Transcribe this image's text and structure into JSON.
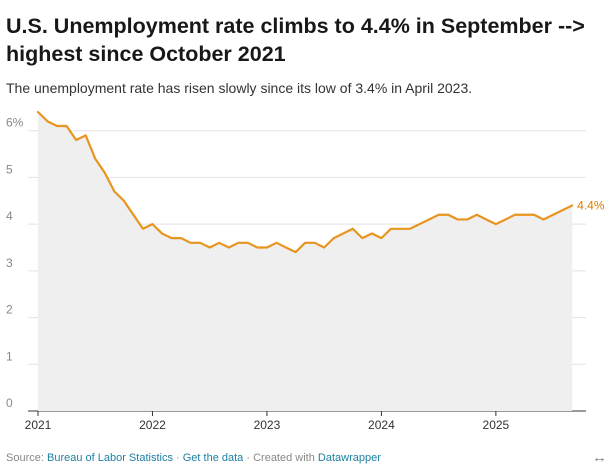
{
  "title": "U.S. Unemployment rate climbs to 4.4% in September --> highest since October 2021",
  "subtitle": "The unemployment rate has risen slowly since its low of 3.4% in April 2023.",
  "footer": {
    "source_prefix": "Source:",
    "source_link": "Bureau of Labor Statistics",
    "separator1": "·",
    "get_data": "Get the data",
    "separator2": "·",
    "created_with": "Created with",
    "datawrapper": "Datawrapper"
  },
  "expand_icon": "↔",
  "colors": {
    "line": "#e8951f",
    "area": "#efefef",
    "label": "#d97c00",
    "grid": "#e2e2e2",
    "link": "#1d81a2"
  },
  "chart_data": {
    "type": "line",
    "title": "U.S. Unemployment rate climbs to 4.4% in September --> highest since October 2021",
    "subtitle": "The unemployment rate has risen slowly since its low of 3.4% in April 2023.",
    "xlabel": "",
    "ylabel": "",
    "ylim": [
      0,
      6.4
    ],
    "yticks": [
      0,
      1,
      2,
      3,
      4,
      5,
      6
    ],
    "ytick_labels": [
      "0",
      "1",
      "2",
      "3",
      "4",
      "5",
      "6%"
    ],
    "xticks": [
      "2021",
      "2022",
      "2023",
      "2024",
      "2025"
    ],
    "grid": true,
    "area_fill": true,
    "end_label": "4.4%",
    "x": [
      "2021-01",
      "2021-02",
      "2021-03",
      "2021-04",
      "2021-05",
      "2021-06",
      "2021-07",
      "2021-08",
      "2021-09",
      "2021-10",
      "2021-11",
      "2021-12",
      "2022-01",
      "2022-02",
      "2022-03",
      "2022-04",
      "2022-05",
      "2022-06",
      "2022-07",
      "2022-08",
      "2022-09",
      "2022-10",
      "2022-11",
      "2022-12",
      "2023-01",
      "2023-02",
      "2023-03",
      "2023-04",
      "2023-05",
      "2023-06",
      "2023-07",
      "2023-08",
      "2023-09",
      "2023-10",
      "2023-11",
      "2023-12",
      "2024-01",
      "2024-02",
      "2024-03",
      "2024-04",
      "2024-05",
      "2024-06",
      "2024-07",
      "2024-08",
      "2024-09",
      "2024-10",
      "2024-11",
      "2024-12",
      "2025-01",
      "2025-02",
      "2025-03",
      "2025-04",
      "2025-05",
      "2025-06",
      "2025-07",
      "2025-08",
      "2025-09"
    ],
    "values": [
      6.4,
      6.2,
      6.1,
      6.1,
      5.8,
      5.9,
      5.4,
      5.1,
      4.7,
      4.5,
      4.2,
      3.9,
      4.0,
      3.8,
      3.7,
      3.7,
      3.6,
      3.6,
      3.5,
      3.6,
      3.5,
      3.6,
      3.6,
      3.5,
      3.5,
      3.6,
      3.5,
      3.4,
      3.6,
      3.6,
      3.5,
      3.7,
      3.8,
      3.9,
      3.7,
      3.8,
      3.7,
      3.9,
      3.9,
      3.9,
      4.0,
      4.1,
      4.2,
      4.2,
      4.1,
      4.1,
      4.2,
      4.1,
      4.0,
      4.1,
      4.2,
      4.2,
      4.2,
      4.1,
      4.2,
      4.3,
      4.4
    ]
  }
}
